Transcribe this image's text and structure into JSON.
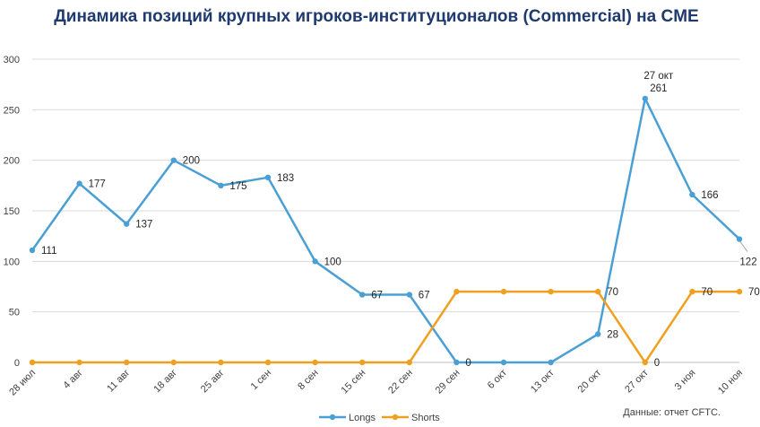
{
  "chart_data": {
    "type": "line",
    "title": "Динамика позиций крупных игроков-институционалов (Commercial) на CME",
    "categories": [
      "28 июл",
      "4 авг",
      "11 авг",
      "18 авг",
      "25 авг",
      "1 сен",
      "8 сен",
      "15 сен",
      "22 сен",
      "29 сен",
      "6 окт",
      "13 окт",
      "20 окт",
      "27 окт",
      "3 ноя",
      "10 ноя"
    ],
    "ylim": [
      0,
      300
    ],
    "yticks": [
      0,
      50,
      100,
      150,
      200,
      250,
      300
    ],
    "grid": true,
    "legend": "bottom",
    "series": [
      {
        "name": "Longs",
        "color": "#4a9fd5",
        "values": [
          111,
          177,
          137,
          200,
          175,
          183,
          100,
          67,
          67,
          0,
          0,
          0,
          28,
          261,
          166,
          122
        ],
        "labels": [
          "111",
          "177",
          "137",
          "200",
          "175",
          "183",
          "100",
          "67",
          "67",
          "0",
          "",
          "",
          "28",
          "27 окт\n261",
          "166",
          "122"
        ]
      },
      {
        "name": "Shorts",
        "color": "#f0a020",
        "values": [
          0,
          0,
          0,
          0,
          0,
          0,
          0,
          0,
          0,
          70,
          70,
          70,
          70,
          0,
          70,
          70
        ],
        "labels": [
          "",
          "",
          "",
          "",
          "",
          "",
          "",
          "",
          "",
          "",
          "",
          "",
          "70",
          "0",
          "70",
          "70"
        ]
      }
    ]
  },
  "source": "Данные: отчет CFTC."
}
